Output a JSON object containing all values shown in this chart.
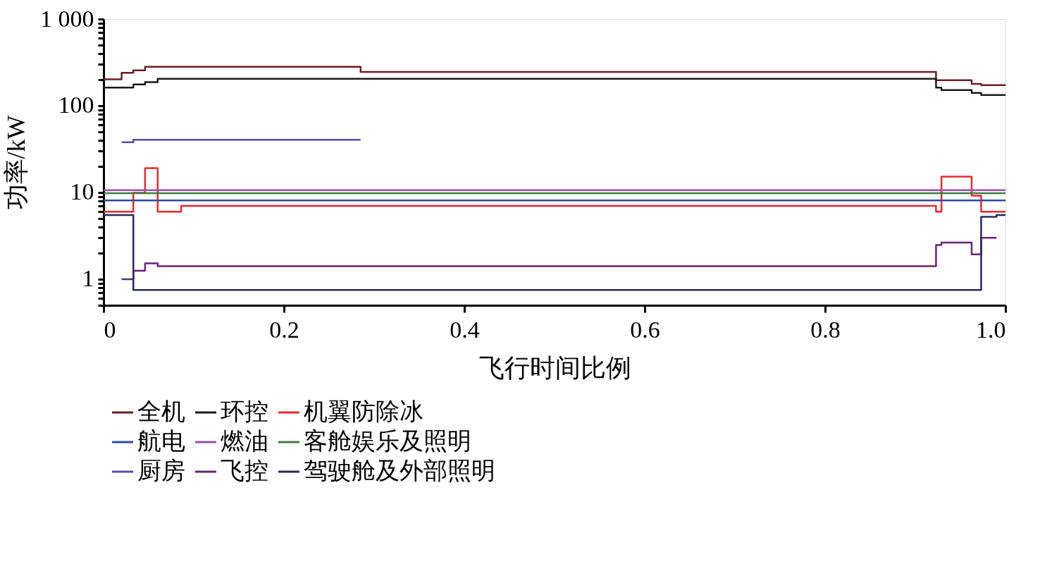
{
  "chart_data": {
    "type": "step",
    "xlabel": "飞行时间比例",
    "ylabel": "功率/kW",
    "log": "y",
    "grid": false,
    "legend": "bottom",
    "xlim": [
      0,
      1
    ],
    "xticks": [
      0,
      0.2,
      0.4,
      0.6,
      0.8,
      {
        "value": 1,
        "label": "1.0"
      }
    ],
    "ylim": [
      0.5,
      1000
    ],
    "yticks": [
      {
        "value": 0.5,
        "label": null
      },
      {
        "value": 0.6,
        "label": null
      },
      {
        "value": 0.7,
        "label": null
      },
      {
        "value": 0.8,
        "label": null
      },
      {
        "value": 0.9,
        "label": null
      },
      1,
      {
        "value": 2,
        "label": null
      },
      {
        "value": 3,
        "label": null
      },
      {
        "value": 4,
        "label": null
      },
      {
        "value": 5,
        "label": null
      },
      {
        "value": 6,
        "label": null
      },
      {
        "value": 7,
        "label": null
      },
      {
        "value": 8,
        "label": null
      },
      {
        "value": 9,
        "label": null
      },
      10,
      {
        "value": 20,
        "label": null
      },
      {
        "value": 30,
        "label": null
      },
      {
        "value": 40,
        "label": null
      },
      {
        "value": 50,
        "label": null
      },
      {
        "value": 60,
        "label": null
      },
      {
        "value": 70,
        "label": null
      },
      {
        "value": 80,
        "label": null
      },
      {
        "value": 90,
        "label": null
      },
      100,
      {
        "value": 200,
        "label": null
      },
      {
        "value": 300,
        "label": null
      },
      {
        "value": 400,
        "label": null
      },
      {
        "value": 500,
        "label": null
      },
      {
        "value": 600,
        "label": null
      },
      {
        "value": 700,
        "label": null
      },
      {
        "value": 800,
        "label": null
      },
      {
        "value": 900,
        "label": null
      },
      {
        "value": 1000,
        "label": "1 000"
      }
    ],
    "series": [
      {
        "name": "全机",
        "color": "#6b1f24",
        "x": [
          0,
          0.02,
          0.033,
          0.046,
          0.285,
          0.923,
          0.9625,
          0.973,
          1
        ],
        "values": [
          202,
          240,
          256,
          281,
          246,
          197,
          179,
          173,
          173
        ]
      },
      {
        "name": "环控",
        "color": "#1a1a1a",
        "x": [
          0,
          0.033,
          0.046,
          0.06,
          0.923,
          0.929,
          0.9625,
          0.973,
          1
        ],
        "values": [
          162,
          176,
          187,
          205,
          162,
          152,
          141,
          133,
          133
        ]
      },
      {
        "name": "机翼防除冰",
        "color": "#e8292f",
        "x": [
          0,
          0.033,
          0.046,
          0.06,
          0.086,
          0.923,
          0.929,
          0.9625,
          0.973,
          1
        ],
        "values": [
          6.0,
          9.9,
          19.1,
          6.0,
          7.0,
          6.0,
          15.2,
          9.2,
          6.0,
          6.0
        ]
      },
      {
        "name": "航电",
        "color": "#2e4a9a",
        "x": [
          0,
          1
        ],
        "values": [
          8.1,
          8.1
        ]
      },
      {
        "name": "燃油",
        "color": "#9b4ea6",
        "x": [
          0,
          1
        ],
        "values": [
          10.6,
          10.6
        ]
      },
      {
        "name": "客舱娱乐及照明",
        "color": "#3a7d3e",
        "x": [
          0,
          1
        ],
        "values": [
          9.8,
          9.8
        ]
      },
      {
        "name": "厨房",
        "color": "#5a4aa8",
        "x": [
          0.02,
          0.033,
          0.285
        ],
        "values": [
          38,
          40.5,
          40.5
        ]
      },
      {
        "name": "飞控",
        "color": "#6a2478",
        "x": [
          0.02,
          0.033,
          0.046,
          0.06,
          0.923,
          0.929,
          0.9625,
          0.973,
          0.99
        ],
        "values": [
          1.0,
          1.25,
          1.52,
          1.41,
          2.48,
          2.64,
          1.93,
          3.0,
          3.0
        ]
      },
      {
        "name": "驾驶舱及外部照明",
        "color": "#262b55",
        "x": [
          0,
          0.033,
          0.973,
          0.99,
          1
        ],
        "values": [
          5.5,
          0.75,
          5.25,
          5.5,
          5.5
        ]
      }
    ]
  }
}
